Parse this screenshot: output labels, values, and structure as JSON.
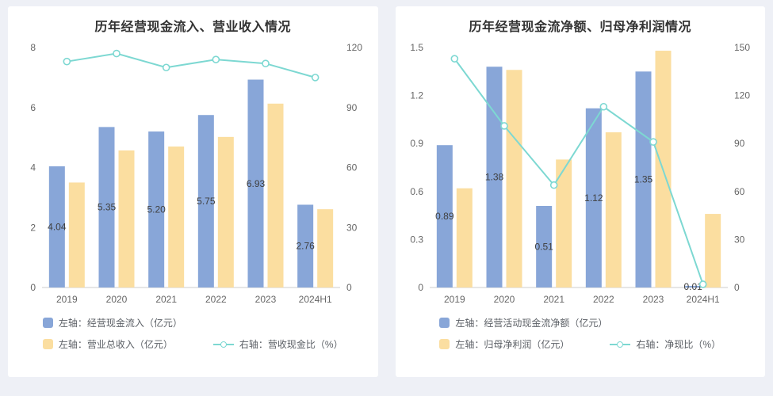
{
  "page": {
    "background": "#eef0f6",
    "panel_background": "#ffffff"
  },
  "colors": {
    "bar_primary": "#88A6D8",
    "bar_secondary": "#FBDEA0",
    "trend_line": "#7DD8D2",
    "title_text": "#333333",
    "axis_text": "#666666"
  },
  "chart_data": [
    {
      "type": "bar",
      "title": "历年经营现金流入、营业收入情况",
      "categories": [
        "2019",
        "2020",
        "2021",
        "2022",
        "2023",
        "2024H1"
      ],
      "left_axis": {
        "min": 0,
        "max": 8,
        "ticks": [
          "0",
          "2",
          "4",
          "6",
          "8"
        ]
      },
      "right_axis": {
        "min": 0,
        "max": 120,
        "ticks": [
          "0",
          "30",
          "60",
          "90",
          "120"
        ]
      },
      "grid": false,
      "legend_position": "bottom",
      "series": [
        {
          "name": "左轴：经营现金流入（亿元）",
          "type": "bar",
          "axis": "left",
          "color": "#88A6D8",
          "values": [
            4.04,
            5.35,
            5.2,
            5.75,
            6.93,
            2.76
          ],
          "labels": [
            "4.04",
            "5.35",
            "5.20",
            "5.75",
            "6.93",
            "2.76"
          ]
        },
        {
          "name": "左轴：营业总收入（亿元）",
          "type": "bar",
          "axis": "left",
          "color": "#FBDEA0",
          "values": [
            3.5,
            4.57,
            4.7,
            5.02,
            6.13,
            2.61
          ]
        },
        {
          "name": "右轴：营收现金比（%）",
          "type": "line",
          "axis": "right",
          "color": "#7DD8D2",
          "values": [
            113,
            117,
            110,
            114,
            112,
            105
          ]
        }
      ]
    },
    {
      "type": "bar",
      "title": "历年经营现金流净额、归母净利润情况",
      "categories": [
        "2019",
        "2020",
        "2021",
        "2022",
        "2023",
        "2024H1"
      ],
      "left_axis": {
        "min": 0,
        "max": 1.5,
        "ticks": [
          "0",
          "0.3",
          "0.6",
          "0.9",
          "1.2",
          "1.5"
        ]
      },
      "right_axis": {
        "min": 0,
        "max": 150,
        "ticks": [
          "0",
          "30",
          "60",
          "90",
          "120",
          "150"
        ]
      },
      "grid": false,
      "legend_position": "bottom",
      "series": [
        {
          "name": "左轴：经营活动现金流净额（亿元）",
          "type": "bar",
          "axis": "left",
          "color": "#88A6D8",
          "values": [
            0.89,
            1.38,
            0.51,
            1.12,
            1.35,
            0.01
          ],
          "labels": [
            "0.89",
            "1.38",
            "0.51",
            "1.12",
            "1.35",
            "0.01"
          ]
        },
        {
          "name": "左轴：归母净利润（亿元）",
          "type": "bar",
          "axis": "left",
          "color": "#FBDEA0",
          "values": [
            0.62,
            1.36,
            0.8,
            0.97,
            1.48,
            0.46
          ]
        },
        {
          "name": "右轴：净现比（%）",
          "type": "line",
          "axis": "right",
          "color": "#7DD8D2",
          "values": [
            143,
            101,
            64,
            113,
            91,
            2
          ]
        }
      ]
    }
  ]
}
